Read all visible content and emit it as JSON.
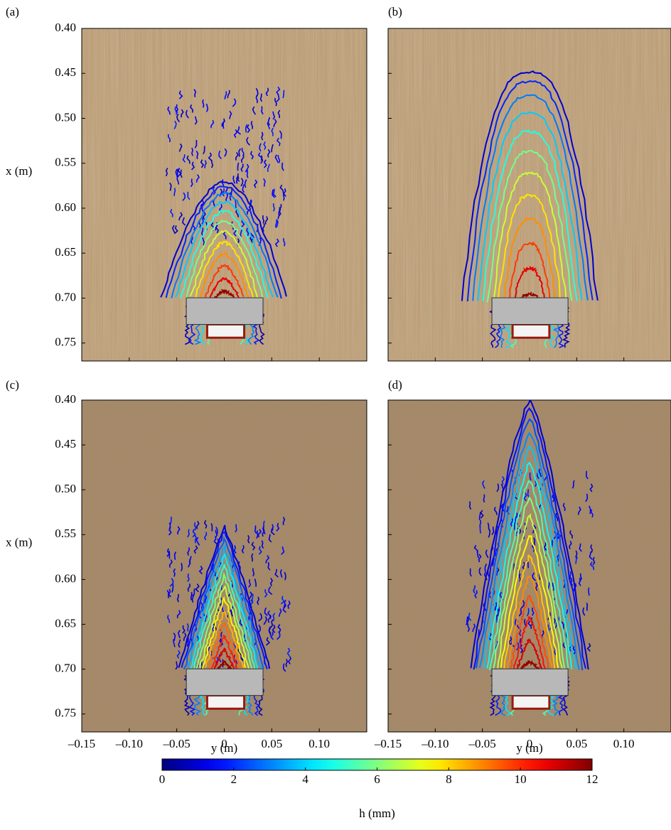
{
  "chart_data": [
    {
      "type": "contour",
      "panel_label": "(a)",
      "background": "wood",
      "ylabel": "x (m)",
      "xlim": [
        -0.15,
        0.15
      ],
      "ylim": [
        0.77,
        0.4
      ],
      "xticks": [
        {
          "value": -0.15,
          "label": "–0.15"
        },
        {
          "value": -0.1,
          "label": "–0.10"
        },
        {
          "value": -0.05,
          "label": "–0.05"
        },
        0,
        0.05,
        {
          "value": 0.1,
          "label": "0.10"
        }
      ],
      "yticks": [
        {
          "value": 0.4,
          "label": "0.40"
        },
        0.45,
        {
          "value": 0.5,
          "label": "0.50"
        },
        0.55,
        {
          "value": 0.6,
          "label": "0.60"
        },
        0.65,
        {
          "value": 0.7,
          "label": "0.70"
        },
        0.75
      ],
      "show_xticklabels": false,
      "show_yticklabels": true
    },
    {
      "type": "contour",
      "panel_label": "(b)",
      "background": "wood",
      "xlim": [
        -0.15,
        0.15
      ],
      "ylim": [
        0.77,
        0.4
      ],
      "xticks": [
        {
          "value": -0.15,
          "label": "–0.15"
        },
        {
          "value": -0.1,
          "label": "–0.10"
        },
        {
          "value": -0.05,
          "label": "–0.05"
        },
        0,
        0.05,
        {
          "value": 0.1,
          "label": "0.10"
        }
      ],
      "yticks": [
        {
          "value": 0.4,
          "label": "0.40"
        },
        0.45,
        {
          "value": 0.5,
          "label": "0.50"
        },
        0.55,
        {
          "value": 0.6,
          "label": "0.60"
        },
        0.65,
        {
          "value": 0.7,
          "label": "0.70"
        },
        0.75
      ],
      "show_xticklabels": false,
      "show_yticklabels": false
    },
    {
      "type": "contour",
      "panel_label": "(c)",
      "background": "sand",
      "ylabel": "x (m)",
      "xlabel": "y (m)",
      "xlim": [
        -0.15,
        0.15
      ],
      "ylim": [
        0.77,
        0.4
      ],
      "xticks": [
        {
          "value": -0.15,
          "label": "–0.15"
        },
        {
          "value": -0.1,
          "label": "–0.10"
        },
        {
          "value": -0.05,
          "label": "–0.05"
        },
        0,
        0.05,
        {
          "value": 0.1,
          "label": "0.10"
        }
      ],
      "yticks": [
        {
          "value": 0.4,
          "label": "0.40"
        },
        0.45,
        {
          "value": 0.5,
          "label": "0.50"
        },
        0.55,
        {
          "value": 0.6,
          "label": "0.60"
        },
        0.65,
        {
          "value": 0.7,
          "label": "0.70"
        },
        0.75
      ],
      "show_xticklabels": true,
      "show_yticklabels": true
    },
    {
      "type": "contour",
      "panel_label": "(d)",
      "background": "sand",
      "xlabel": "y (m)",
      "xlim": [
        -0.15,
        0.15
      ],
      "ylim": [
        0.77,
        0.4
      ],
      "xticks": [
        {
          "value": -0.15,
          "label": "–0.15"
        },
        {
          "value": -0.1,
          "label": "–0.10"
        },
        {
          "value": -0.05,
          "label": "–0.05"
        },
        0,
        0.05,
        {
          "value": 0.1,
          "label": "0.10"
        }
      ],
      "yticks": [
        {
          "value": 0.4,
          "label": "0.40"
        },
        0.45,
        {
          "value": 0.5,
          "label": "0.50"
        },
        0.55,
        {
          "value": 0.6,
          "label": "0.60"
        },
        0.65,
        {
          "value": 0.7,
          "label": "0.70"
        },
        0.75
      ],
      "show_xticklabels": true,
      "show_yticklabels": false
    },
    {
      "type": "colorbar",
      "colormap": "jet",
      "label": "h (mm)",
      "lim": [
        0,
        12
      ],
      "ticks": [
        0,
        2,
        4,
        6,
        8,
        10,
        12
      ]
    }
  ]
}
